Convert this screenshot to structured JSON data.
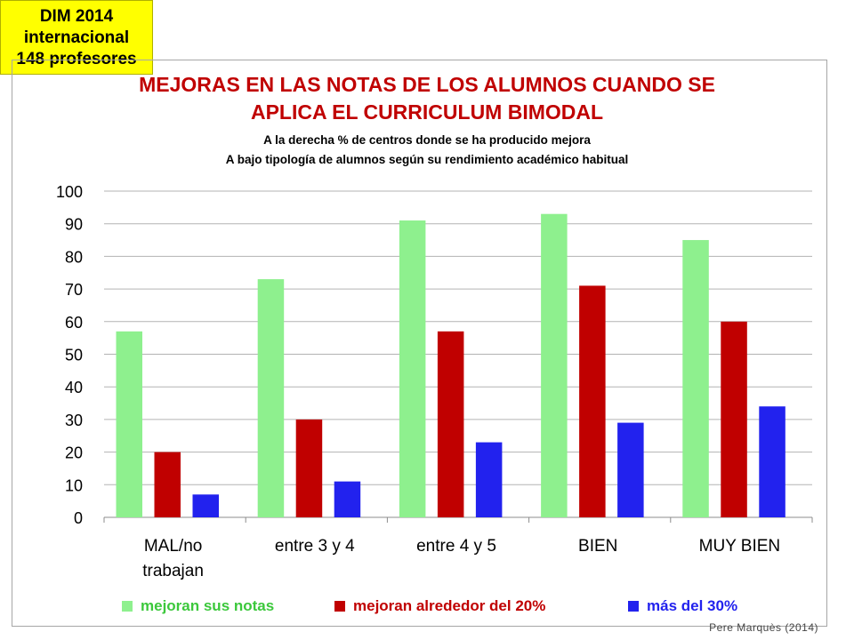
{
  "badge": {
    "lines": [
      "DIM 2014",
      "internacional",
      "148 profesores"
    ]
  },
  "credit": "Pere Marquès (2014)",
  "chart_data": {
    "type": "bar",
    "title": [
      "MEJORAS EN LAS NOTAS DE LOS ALUMNOS CUANDO SE",
      "APLICA EL CURRICULUM BIMODAL"
    ],
    "subtitle": [
      "A la derecha % de centros donde se ha producido mejora",
      "A bajo tipología de alumnos según su rendimiento académico  habitual"
    ],
    "categories": [
      [
        "MAL/no",
        "trabajan"
      ],
      [
        "entre 3 y 4"
      ],
      [
        "entre 4 y 5"
      ],
      [
        "BIEN"
      ],
      [
        "MUY BIEN"
      ]
    ],
    "series": [
      {
        "name": "mejoran sus notas",
        "color": "#8ef08e",
        "values": [
          57,
          73,
          91,
          93,
          85
        ]
      },
      {
        "name": "mejoran alrededor del 20%",
        "color": "#c00000",
        "values": [
          20,
          30,
          57,
          71,
          60
        ]
      },
      {
        "name": "más del 30%",
        "color": "#2222ee",
        "values": [
          7,
          11,
          23,
          29,
          34
        ]
      }
    ],
    "ylim": [
      0,
      100
    ],
    "yticks": [
      0,
      10,
      20,
      30,
      40,
      50,
      60,
      70,
      80,
      90,
      100
    ],
    "grid": true,
    "legend": "bottom"
  }
}
